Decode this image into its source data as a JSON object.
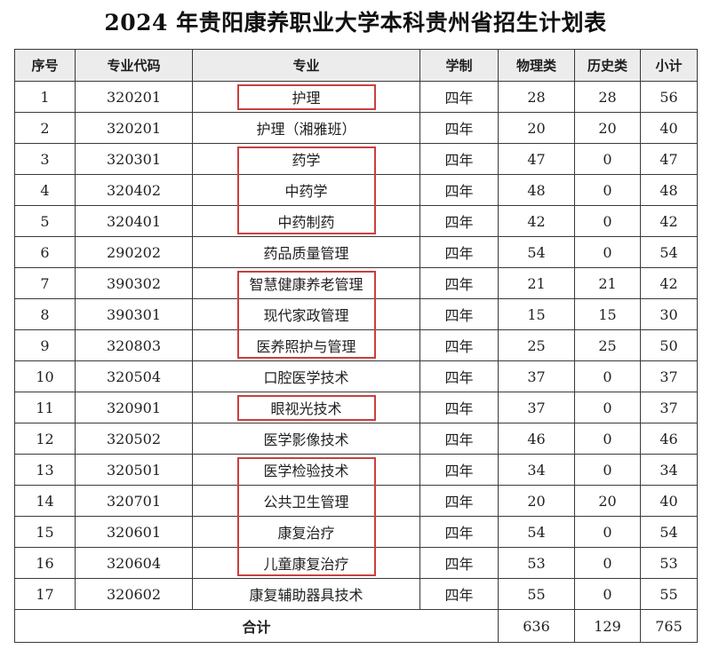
{
  "title": "2024 年贵阳康养职业大学本科贵州省招生计划表",
  "columns": [
    "序号",
    "专业代码",
    "专业",
    "学制",
    "物理类",
    "历史类",
    "小计"
  ],
  "rows": [
    [
      "1",
      "320201",
      "护理",
      "四年",
      "28",
      "28",
      "56"
    ],
    [
      "2",
      "320201",
      "护理（湘雅班）",
      "四年",
      "20",
      "20",
      "40"
    ],
    [
      "3",
      "320301",
      "药学",
      "四年",
      "47",
      "0",
      "47"
    ],
    [
      "4",
      "320402",
      "中药学",
      "四年",
      "48",
      "0",
      "48"
    ],
    [
      "5",
      "320401",
      "中药制药",
      "四年",
      "42",
      "0",
      "42"
    ],
    [
      "6",
      "290202",
      "药品质量管理",
      "四年",
      "54",
      "0",
      "54"
    ],
    [
      "7",
      "390302",
      "智慧健康养老管理",
      "四年",
      "21",
      "21",
      "42"
    ],
    [
      "8",
      "390301",
      "现代家政管理",
      "四年",
      "15",
      "15",
      "30"
    ],
    [
      "9",
      "320803",
      "医养照护与管理",
      "四年",
      "25",
      "25",
      "50"
    ],
    [
      "10",
      "320504",
      "口腔医学技术",
      "四年",
      "37",
      "0",
      "37"
    ],
    [
      "11",
      "320901",
      "眼视光技术",
      "四年",
      "37",
      "0",
      "37"
    ],
    [
      "12",
      "320502",
      "医学影像技术",
      "四年",
      "46",
      "0",
      "46"
    ],
    [
      "13",
      "320501",
      "医学检验技术",
      "四年",
      "34",
      "0",
      "34"
    ],
    [
      "14",
      "320701",
      "公共卫生管理",
      "四年",
      "20",
      "20",
      "40"
    ],
    [
      "15",
      "320601",
      "康复治疗",
      "四年",
      "54",
      "0",
      "54"
    ],
    [
      "16",
      "320604",
      "儿童康复治疗",
      "四年",
      "53",
      "0",
      "53"
    ],
    [
      "17",
      "320602",
      "康复辅助器具技术",
      "四年",
      "55",
      "0",
      "55"
    ]
  ],
  "total": {
    "label": "合计",
    "physics": "636",
    "history": "129",
    "subtotal": "765"
  },
  "highlight_groups": [
    {
      "from": 1,
      "to": 1
    },
    {
      "from": 3,
      "to": 5
    },
    {
      "from": 7,
      "to": 9
    },
    {
      "from": 11,
      "to": 11
    },
    {
      "from": 13,
      "to": 16
    }
  ],
  "colors": {
    "highlight_border": "#c9403f",
    "header_background": "#ececec",
    "grid": "#3a3a3a"
  }
}
